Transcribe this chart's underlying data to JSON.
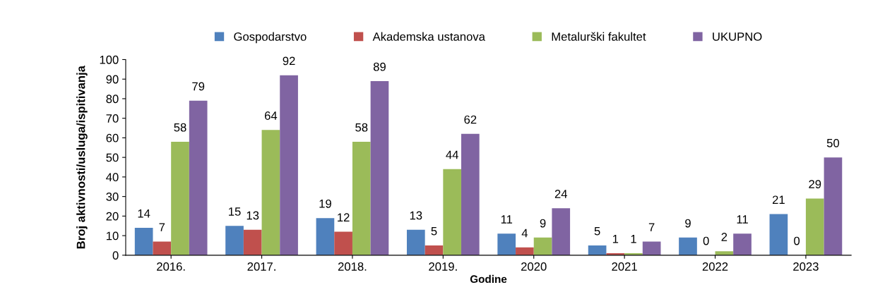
{
  "chart_data": {
    "type": "bar",
    "xlabel": "Godine",
    "ylabel": "Broj aktivnosti/usluga/ispitivanja",
    "categories": [
      "2016.",
      "2017.",
      "2018.",
      "2019.",
      "2020",
      "2021",
      "2022",
      "2023"
    ],
    "series": [
      {
        "name": "Gospodarstvo",
        "color": "#4f81bd",
        "values": [
          14,
          15,
          19,
          13,
          11,
          5,
          9,
          21
        ]
      },
      {
        "name": "Akademska ustanova",
        "color": "#c0504d",
        "values": [
          7,
          13,
          12,
          5,
          4,
          1,
          0,
          0
        ]
      },
      {
        "name": "Metalurški fakultet",
        "color": "#9bbb59",
        "values": [
          58,
          64,
          58,
          44,
          9,
          1,
          2,
          29
        ]
      },
      {
        "name": "UKUPNO",
        "color": "#8064a2",
        "values": [
          79,
          92,
          89,
          62,
          24,
          7,
          11,
          50
        ]
      }
    ],
    "ylim": [
      0,
      100
    ],
    "yticks": [
      0,
      10,
      20,
      30,
      40,
      50,
      60,
      70,
      80,
      90,
      100
    ],
    "data_labels": true,
    "legend": "top",
    "grid": false
  }
}
